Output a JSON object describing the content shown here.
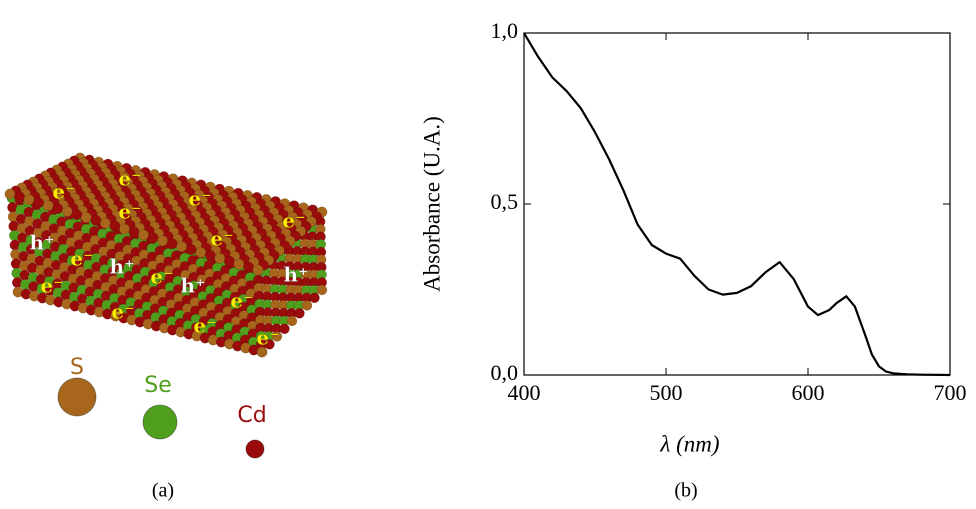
{
  "illustration": {
    "carrier_labels": [
      "e⁻",
      "e⁻",
      "e⁻",
      "e⁻",
      "e⁻",
      "e⁻",
      "h⁺",
      "e⁻",
      "h⁺",
      "e⁻",
      "h⁺",
      "e⁻",
      "e⁻",
      "e⁻",
      "e⁻",
      "e⁻",
      "h⁺"
    ],
    "atoms": [
      {
        "label": "S",
        "color": "#a8661c"
      },
      {
        "label": "Se",
        "color": "#4f9e1c"
      },
      {
        "label": "Cd",
        "color": "#9a0c0c"
      }
    ],
    "caption": "(a)"
  },
  "chart_data": {
    "type": "line",
    "caption": "(b)",
    "xlabel": "λ (nm)",
    "ylabel": "Absorbance (U.A.)",
    "color": "#000000",
    "x": [
      400,
      410,
      420,
      430,
      440,
      450,
      460,
      470,
      480,
      490,
      500,
      510,
      520,
      530,
      540,
      550,
      560,
      570,
      580,
      590,
      600,
      607,
      615,
      620,
      627,
      633,
      640,
      645,
      650,
      655,
      660,
      670,
      680,
      700
    ],
    "values": [
      1.0,
      0.93,
      0.87,
      0.83,
      0.78,
      0.71,
      0.63,
      0.54,
      0.44,
      0.38,
      0.355,
      0.34,
      0.29,
      0.25,
      0.235,
      0.24,
      0.26,
      0.3,
      0.33,
      0.28,
      0.2,
      0.175,
      0.19,
      0.21,
      0.23,
      0.2,
      0.12,
      0.06,
      0.025,
      0.01,
      0.005,
      0.002,
      0.001,
      0.0
    ],
    "xlim": [
      400,
      700
    ],
    "xticks": [
      400,
      500,
      600,
      700
    ],
    "ylim": [
      0,
      1
    ],
    "yticks": [
      {
        "value": 0,
        "label": "0,0"
      },
      {
        "value": 0.5,
        "label": "0,5"
      },
      {
        "value": 1,
        "label": "1,0"
      }
    ]
  }
}
